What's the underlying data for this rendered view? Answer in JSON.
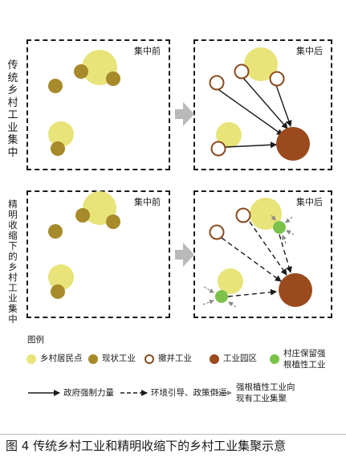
{
  "row_labels": {
    "top": "传统乡村工业集中",
    "bottom": "精明收缩下的乡村工业集中"
  },
  "panel_titles": {
    "before": "集中前",
    "after": "集中后"
  },
  "legend": {
    "title": "图例",
    "items": [
      {
        "label": "乡村居民点",
        "color": "#e8e47a"
      },
      {
        "label": "现状工业",
        "color": "#a78a2a"
      },
      {
        "label": "撤并工业",
        "color": "#ffffff",
        "stroke": "#8b4a1e"
      },
      {
        "label": "工业园区",
        "color": "#9a4a1c"
      },
      {
        "label": "村庄保留强根植性工业",
        "line1": "村庄保留强",
        "line2": "根植性工业",
        "color": "#7cc24a"
      }
    ],
    "arrows": [
      {
        "label": "政府强制力量",
        "style": "solid"
      },
      {
        "label": "环境引导、政策倒逼",
        "style": "dashed"
      },
      {
        "label": "强根植性工业向现有工业集聚",
        "line1": "强根植性工业向",
        "line2": "现有工业集聚",
        "style": "dashed-small"
      }
    ]
  },
  "caption": "图 4  传统乡村工业和精明收缩下的乡村工业集聚示意",
  "colors": {
    "settlement": "#e8e47a",
    "industry": "#a78a2a",
    "park": "#9a4a1c",
    "closed_stroke": "#8b4a1e",
    "retained": "#7cc24a",
    "transition_arrow": "#b9b9b9",
    "retained_arrow": "#8a8a8a"
  }
}
